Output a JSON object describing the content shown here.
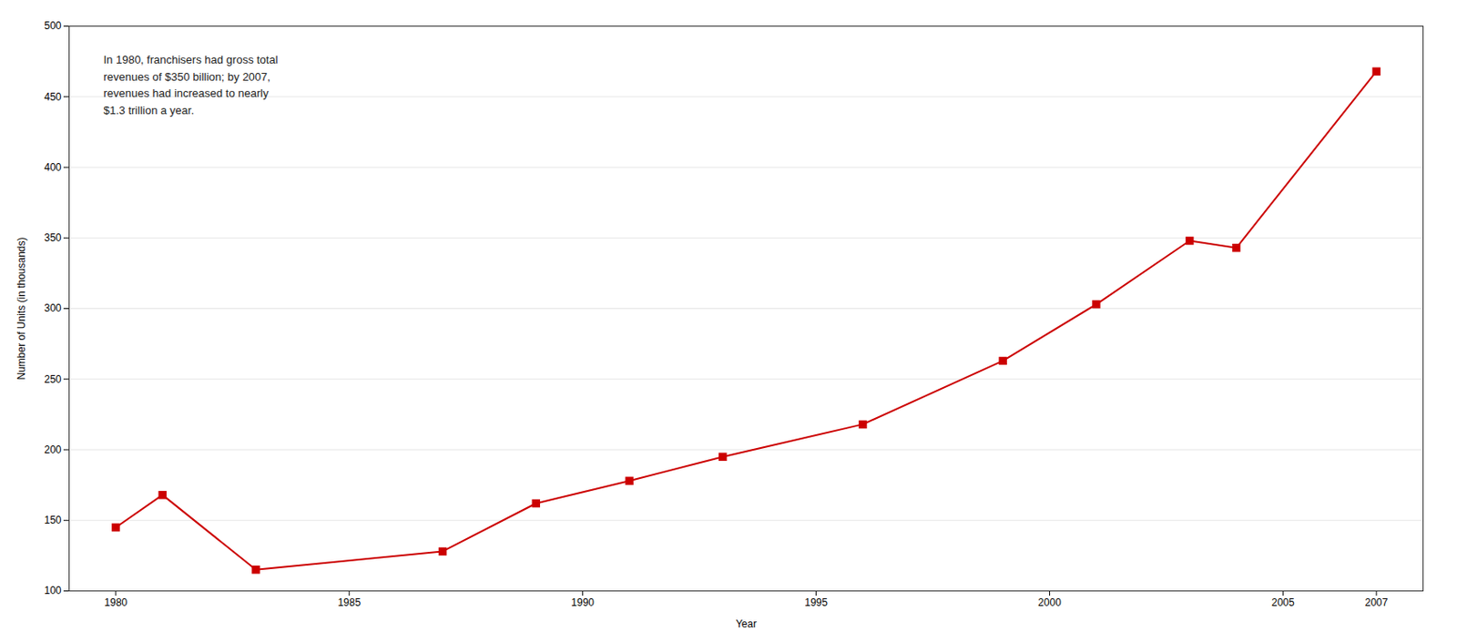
{
  "chart_data": {
    "type": "line",
    "x": [
      1980,
      1981,
      1983,
      1987,
      1989,
      1991,
      1993,
      1996,
      1999,
      2001,
      2003,
      2004,
      2007
    ],
    "values": [
      145,
      168,
      115,
      128,
      162,
      178,
      195,
      218,
      263,
      303,
      348,
      343,
      468
    ],
    "color": "#cc0000",
    "marker": "square",
    "xlabel": "Year",
    "ylabel": "Number of Units (in thousands)",
    "xlim": [
      1979,
      2008
    ],
    "ylim": [
      100,
      500
    ],
    "xticks": [
      1980,
      1985,
      1990,
      1995,
      2000,
      2005,
      2007
    ],
    "yticks": [
      100,
      150,
      200,
      250,
      300,
      350,
      400,
      450,
      500
    ],
    "grid": true,
    "annotation": "In 1980, franchisers had gross total\nrevenues of $350 billion; by 2007,\nrevenues had increased to nearly\n$1.3 trillion a year."
  }
}
